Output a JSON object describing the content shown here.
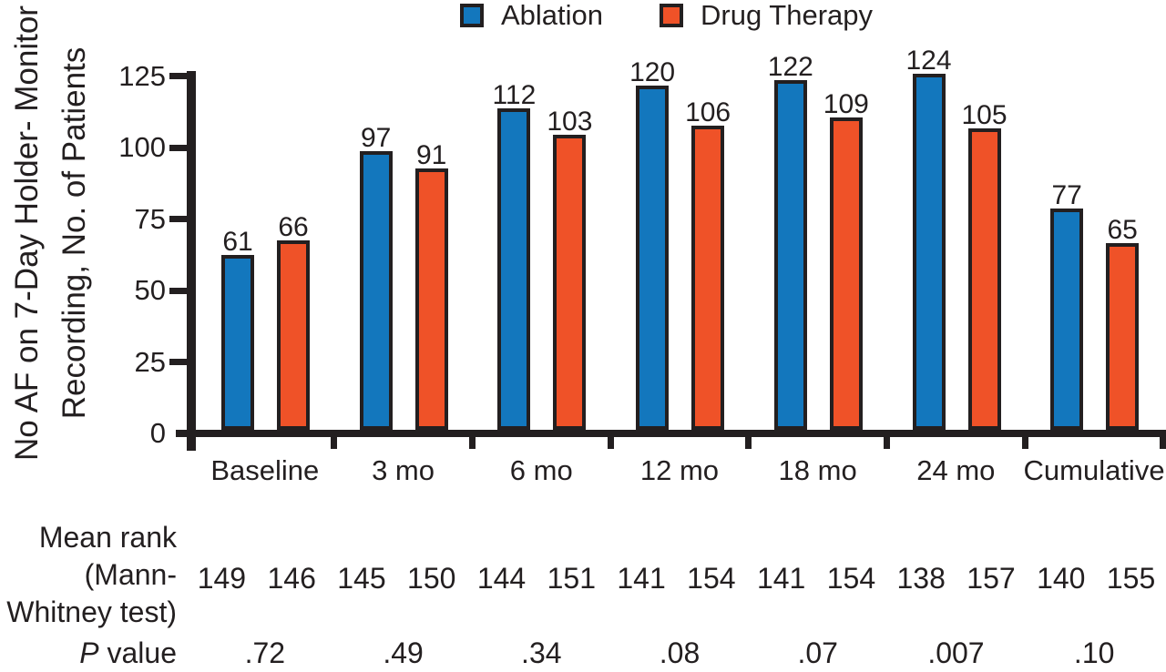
{
  "legend": {
    "items": [
      {
        "label": "Ablation",
        "color": "#1377BD"
      },
      {
        "label": "Drug Therapy",
        "color": "#EF5228"
      }
    ]
  },
  "chart_data": {
    "type": "bar",
    "title": "",
    "categories": [
      "Baseline",
      "3 mo",
      "6 mo",
      "12 mo",
      "18 mo",
      "24 mo",
      "Cumulative"
    ],
    "series": [
      {
        "name": "Ablation",
        "color": "#1377BD",
        "values": [
          61,
          97,
          112,
          120,
          122,
          124,
          77
        ]
      },
      {
        "name": "Drug Therapy",
        "color": "#EF5228",
        "values": [
          66,
          91,
          103,
          106,
          109,
          105,
          65
        ]
      }
    ],
    "xlabel": "",
    "ylabel": "No AF on 7-Day Holder- Monitor Recording, No. of Patients",
    "ylabel_lines": [
      "No AF on 7-Day Holder- Monitor",
      "Recording, No. of Patients"
    ],
    "ylim": [
      0,
      125
    ],
    "yticks": [
      0,
      25,
      50,
      75,
      100,
      125
    ],
    "grid": false,
    "legend_position": "top",
    "bar_value_labels": true
  },
  "stats": {
    "mean_rank": {
      "label_lines": [
        "Mean rank",
        "(Mann-",
        "Whitney test)"
      ],
      "pairs": [
        [
          149,
          146
        ],
        [
          145,
          150
        ],
        [
          144,
          151
        ],
        [
          141,
          154
        ],
        [
          141,
          154
        ],
        [
          138,
          157
        ],
        [
          140,
          155
        ]
      ]
    },
    "p_value": {
      "label_italic": "P",
      "label_rest": " value",
      "values": [
        ".72",
        ".49",
        ".34",
        ".08",
        ".07",
        ".007",
        ".10"
      ]
    }
  },
  "colors": {
    "ink": "#231F20",
    "ablation": "#1377BD",
    "drug_therapy": "#EF5228",
    "background": "#FFFFFF"
  }
}
